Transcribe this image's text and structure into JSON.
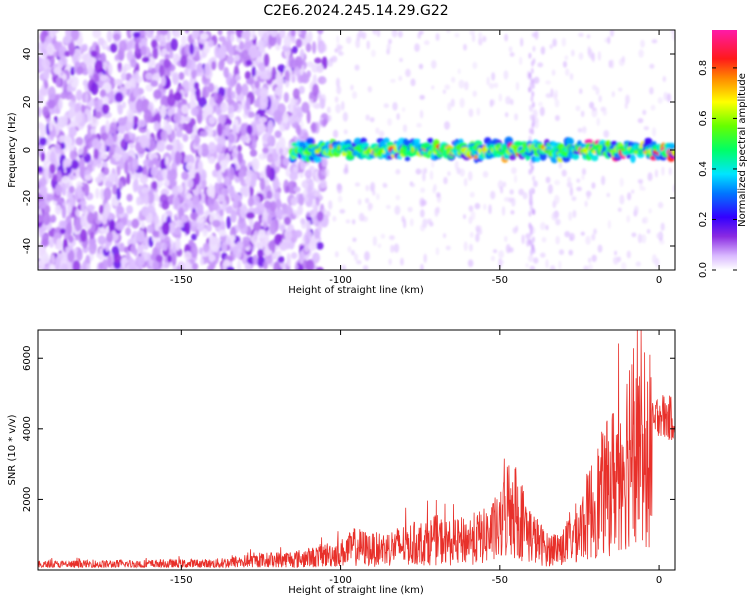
{
  "title": "C2E6.2024.245.14.29.G22",
  "chart_data": [
    {
      "type": "heatmap",
      "xlabel": "Height of straight line (km)",
      "ylabel": "Frequency (Hz)",
      "xlim": [
        -195,
        5
      ],
      "ylim": [
        -50,
        50
      ],
      "x_ticks": [
        -150,
        -100,
        -50,
        0
      ],
      "y_ticks": [
        -40,
        -20,
        0,
        20,
        40
      ],
      "colorbar": {
        "label": "Normalized spectral amplitude",
        "range": [
          0,
          0.95
        ],
        "ticks": [
          0.0,
          0.2,
          0.4,
          0.6,
          0.8
        ],
        "colormap": "rainbow (white → purple → blue → cyan → green → yellow → red → magenta)"
      },
      "features": [
        {
          "description": "broadband noise at all frequencies",
          "x_range": [
            -195,
            -115
          ],
          "amplitude": 0.1
        },
        {
          "description": "narrow band centered near 0 Hz",
          "x_range": [
            -115,
            5
          ],
          "frequency_center": 0,
          "bandwidth_hz": 8,
          "peak_amplitude": 0.9
        },
        {
          "description": "vertical streak",
          "x": -40,
          "frequency_range": [
            -45,
            45
          ],
          "amplitude": 0.05
        }
      ]
    },
    {
      "type": "line",
      "xlabel": "Height of straight line (km)",
      "ylabel": "SNR (10 * v/v)",
      "xlim": [
        -195,
        5
      ],
      "ylim": [
        0,
        6800
      ],
      "x_ticks": [
        -150,
        -100,
        -50,
        0
      ],
      "y_ticks": [
        2000,
        4000,
        6000
      ],
      "series": [
        {
          "color": "#e8302a",
          "x": [
            -195,
            -180,
            -160,
            -140,
            -130,
            -120,
            -110,
            -105,
            -100,
            -95,
            -90,
            -85,
            -80,
            -75,
            -70,
            -65,
            -60,
            -55,
            -50,
            -47,
            -44,
            -40,
            -35,
            -30,
            -25,
            -20,
            -15,
            -10,
            -7,
            -5,
            -2,
            0,
            2,
            5
          ],
          "y": [
            150,
            160,
            170,
            180,
            250,
            300,
            350,
            450,
            500,
            700,
            600,
            650,
            750,
            800,
            900,
            800,
            900,
            1000,
            1200,
            2000,
            1600,
            1000,
            600,
            700,
            1200,
            2000,
            2600,
            3500,
            5000,
            2400,
            4000,
            4500,
            4300,
            4300
          ]
        }
      ]
    }
  ]
}
